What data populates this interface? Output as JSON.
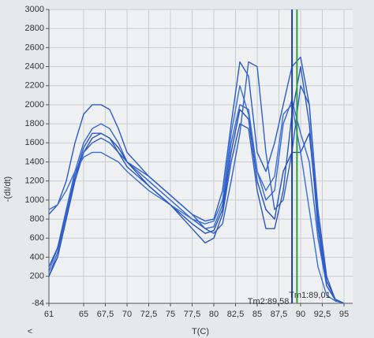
{
  "chart_data": {
    "type": "line",
    "y_label": "-(dI/dt)",
    "x_label": "T(C)",
    "x": [
      61,
      62,
      63,
      64,
      65,
      66,
      67,
      68,
      69,
      70,
      72.5,
      75,
      77.5,
      79,
      80,
      81,
      82,
      83,
      84,
      85,
      86,
      87,
      88,
      89,
      90,
      91,
      92,
      93,
      94,
      95
    ],
    "series": [
      {
        "color": "#2b5cc9",
        "values": [
          850,
          950,
          1200,
          1600,
          1900,
          2000,
          2000,
          1950,
          1750,
          1500,
          1250,
          1050,
          850,
          780,
          800,
          1100,
          1800,
          2450,
          2300,
          1500,
          1300,
          1600,
          2000,
          2400,
          2500,
          2000,
          900,
          200,
          -50,
          -84
        ]
      },
      {
        "color": "#3566d4",
        "values": [
          250,
          500,
          900,
          1300,
          1600,
          1750,
          1800,
          1750,
          1600,
          1400,
          1200,
          1000,
          800,
          700,
          720,
          950,
          1600,
          2000,
          1950,
          1300,
          1000,
          1100,
          1800,
          2050,
          1700,
          1400,
          600,
          100,
          -50,
          -84
        ]
      },
      {
        "color": "#2851b8",
        "values": [
          200,
          400,
          800,
          1200,
          1500,
          1650,
          1700,
          1650,
          1550,
          1400,
          1150,
          950,
          750,
          650,
          680,
          900,
          1500,
          1950,
          1850,
          1200,
          900,
          800,
          1300,
          1500,
          1500,
          1700,
          800,
          150,
          -40,
          -84
        ]
      },
      {
        "color": "#3a6fd8",
        "values": [
          900,
          950,
          1100,
          1300,
          1450,
          1500,
          1500,
          1450,
          1400,
          1300,
          1100,
          950,
          800,
          750,
          780,
          1000,
          1700,
          2200,
          1900,
          1300,
          1100,
          1250,
          1900,
          2000,
          1500,
          900,
          300,
          0,
          -60,
          -84
        ]
      },
      {
        "color": "#2a58c4",
        "values": [
          300,
          500,
          850,
          1250,
          1550,
          1700,
          1700,
          1650,
          1500,
          1350,
          1150,
          950,
          700,
          550,
          600,
          850,
          1400,
          1800,
          1750,
          1100,
          700,
          700,
          1100,
          1900,
          2400,
          1800,
          700,
          100,
          -50,
          -84
        ]
      },
      {
        "color": "#3162cc",
        "values": [
          200,
          450,
          850,
          1250,
          1500,
          1600,
          1650,
          1600,
          1500,
          1400,
          1250,
          1050,
          850,
          700,
          650,
          750,
          1200,
          1700,
          2450,
          2400,
          1500,
          900,
          1000,
          1500,
          2200,
          2000,
          800,
          100,
          -50,
          -84
        ]
      }
    ],
    "markers": [
      {
        "x": 89.01,
        "label": "Tm1:89,01",
        "color": "#1f3fa8"
      },
      {
        "x": 89.58,
        "label": "Tm2:89,58",
        "color": "#2e9e3e"
      }
    ],
    "xlim": [
      61,
      96
    ],
    "xticks": [
      61,
      65,
      {
        "value": 67.5,
        "label": "67,5"
      },
      70,
      {
        "value": 72.5,
        "label": "72,5"
      },
      75,
      {
        "value": 77.5,
        "label": "77,5"
      },
      80,
      {
        "value": 82.5,
        "label": "82,5"
      },
      85,
      {
        "value": 87.5,
        "label": "87,5"
      },
      90,
      {
        "value": 92.5,
        "label": "92,5"
      },
      95
    ],
    "ylim": [
      -84,
      3000
    ],
    "yticks": [
      -84,
      200,
      400,
      600,
      800,
      1000,
      1200,
      1400,
      1600,
      1800,
      2000,
      2200,
      2400,
      2600,
      2800,
      3000
    ],
    "grid": true
  },
  "scroll_arrow": "<"
}
